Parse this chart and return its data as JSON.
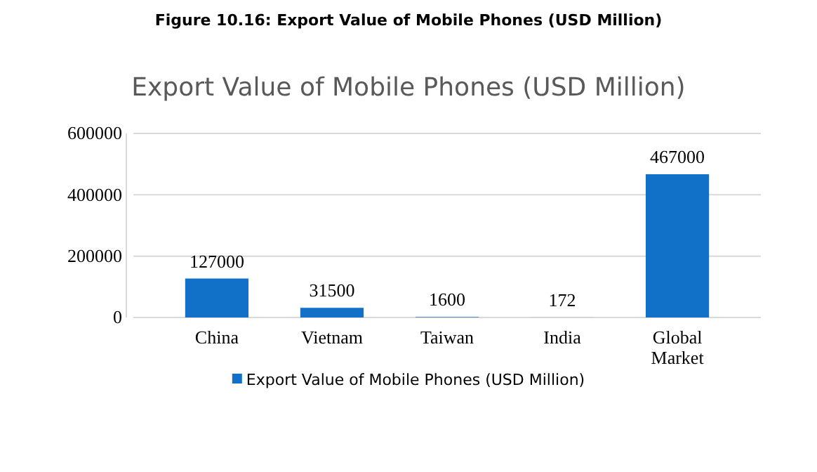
{
  "chart_data": {
    "type": "bar",
    "title": "Figure 10.16: Export Value of Mobile Phones (USD Million)",
    "subtitle": "Export Value of Mobile Phones (USD Million)",
    "categories": [
      "China",
      "Vietnam",
      "Taiwan",
      "India",
      "Global Market"
    ],
    "series": [
      {
        "name": "Export Value of Mobile Phones (USD Million)",
        "color": "#1170c8",
        "values": [
          127000,
          31500,
          1600,
          172,
          467000
        ]
      }
    ],
    "ylim": [
      0,
      600000
    ],
    "yticks": [
      0,
      200000,
      400000,
      600000
    ],
    "grid": "y",
    "legend": "bottom",
    "data_labels": true
  }
}
